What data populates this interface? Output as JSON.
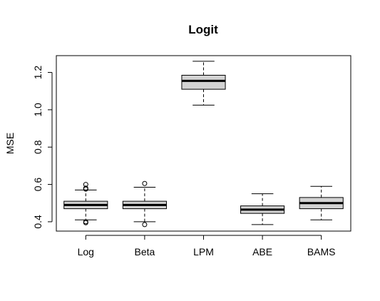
{
  "chart_data": {
    "type": "boxplot",
    "title": "Logit",
    "xlabel": "",
    "ylabel": "MSE",
    "ylim": [
      0.35,
      1.29
    ],
    "yticks": [
      0.4,
      0.6,
      0.8,
      1.0,
      1.2
    ],
    "ytick_labels": [
      "0.4",
      "0.6",
      "0.8",
      "1.0",
      "1.2"
    ],
    "categories": [
      "Log",
      "Beta",
      "LPM",
      "ABE",
      "BAMS"
    ],
    "box_color": "#d3d3d3",
    "series": [
      {
        "category": "Log",
        "whisker_low": 0.41,
        "q1": 0.47,
        "median": 0.49,
        "q3": 0.51,
        "whisker_high": 0.57,
        "outliers": [
          0.6,
          0.58,
          0.575,
          0.4,
          0.395
        ]
      },
      {
        "category": "Beta",
        "whisker_low": 0.4,
        "q1": 0.47,
        "median": 0.49,
        "q3": 0.51,
        "whisker_high": 0.585,
        "outliers": [
          0.605,
          0.385
        ]
      },
      {
        "category": "LPM",
        "whisker_low": 1.025,
        "q1": 1.11,
        "median": 1.155,
        "q3": 1.185,
        "whisker_high": 1.26,
        "outliers": []
      },
      {
        "category": "ABE",
        "whisker_low": 0.385,
        "q1": 0.445,
        "median": 0.465,
        "q3": 0.485,
        "whisker_high": 0.55,
        "outliers": []
      },
      {
        "category": "BAMS",
        "whisker_low": 0.41,
        "q1": 0.47,
        "median": 0.5,
        "q3": 0.53,
        "whisker_high": 0.59,
        "outliers": []
      }
    ]
  }
}
